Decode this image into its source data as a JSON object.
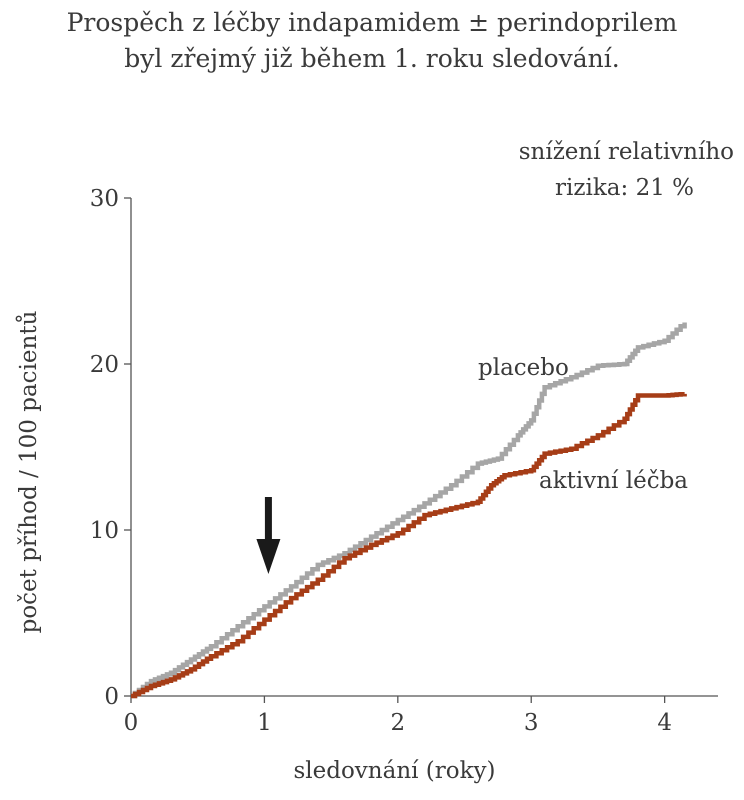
{
  "chart_data": {
    "type": "line",
    "title_line1": "Prospěch z léčby indapamidem ± perindoprilem",
    "title_line2": "byl zřejmý již během 1. roku sledování.",
    "annotation_line1": "snížení relativního",
    "annotation_line2": "rizika: 21 %",
    "xlabel": "sledovnání (roky)",
    "ylabel": "počet příhod / 100 pacientů",
    "xlim": [
      0,
      4.4
    ],
    "ylim": [
      0,
      30
    ],
    "xticks": [
      0,
      1,
      2,
      3,
      4
    ],
    "yticks": [
      0,
      10,
      20,
      30
    ],
    "arrow_x": 1.03,
    "series": [
      {
        "name": "placebo",
        "color": "#a6a6a6",
        "x": [
          0,
          0.15,
          0.3,
          0.45,
          0.6,
          0.8,
          1.0,
          1.2,
          1.4,
          1.6,
          1.8,
          2.0,
          2.2,
          2.4,
          2.6,
          2.75,
          2.9,
          3.0,
          3.1,
          3.3,
          3.5,
          3.7,
          3.8,
          4.0,
          4.15
        ],
        "values": [
          0,
          0.9,
          1.4,
          2.2,
          3.0,
          4.2,
          5.4,
          6.6,
          7.9,
          8.6,
          9.6,
          10.6,
          11.6,
          12.7,
          14.0,
          14.3,
          15.7,
          16.6,
          18.6,
          19.2,
          19.9,
          20.0,
          21.0,
          21.4,
          22.5
        ]
      },
      {
        "name": "aktivní léčba",
        "color": "#a63d17",
        "x": [
          0,
          0.15,
          0.3,
          0.45,
          0.6,
          0.8,
          1.0,
          1.2,
          1.4,
          1.6,
          1.8,
          2.0,
          2.2,
          2.4,
          2.6,
          2.7,
          2.8,
          3.0,
          3.1,
          3.3,
          3.5,
          3.7,
          3.8,
          4.0,
          4.15
        ],
        "values": [
          0,
          0.6,
          1.0,
          1.6,
          2.4,
          3.3,
          4.6,
          5.9,
          7.0,
          8.3,
          9.1,
          9.8,
          10.9,
          11.3,
          11.7,
          12.7,
          13.3,
          13.6,
          14.6,
          14.9,
          15.7,
          16.7,
          18.1,
          18.1,
          18.2
        ]
      }
    ]
  }
}
